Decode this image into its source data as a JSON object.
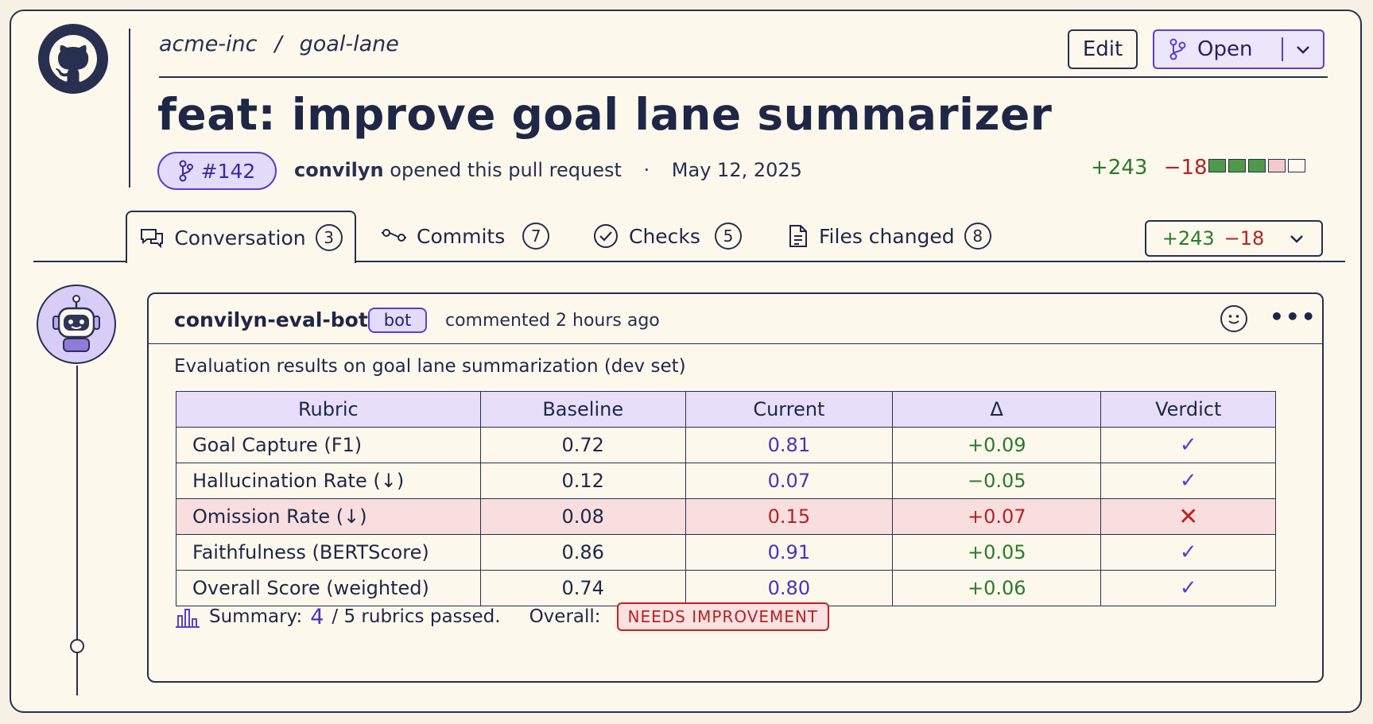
{
  "repo": {
    "owner": "acme-inc",
    "separator": "/",
    "name": "goal-lane"
  },
  "actions": {
    "edit_label": "Edit",
    "state_label": "Open"
  },
  "pr": {
    "title": "feat: improve goal lane summarizer",
    "number": "#142",
    "author": "convilyn",
    "opened_text": "opened this pull request",
    "dot": "·",
    "date": "May 12, 2025",
    "additions": "+243",
    "deletions": "−18"
  },
  "tabs": [
    {
      "label": "Conversation",
      "count": "3"
    },
    {
      "label": "Commits",
      "count": "7"
    },
    {
      "label": "Checks",
      "count": "5"
    },
    {
      "label": "Files changed",
      "count": "8"
    }
  ],
  "diff_button": {
    "additions": "+243",
    "deletions": "−18"
  },
  "comment": {
    "author": "convilyn-eval-bot",
    "badge": "bot",
    "meta": "commented 2 hours ago",
    "more": "•••",
    "intro": "Evaluation results on goal lane summarization (dev set)",
    "table": {
      "headers": [
        "Rubric",
        "Baseline",
        "Current",
        "Δ",
        "Verdict"
      ],
      "rows": [
        {
          "rubric": "Goal Capture (F1)",
          "baseline": "0.72",
          "current": "0.81",
          "delta": "+0.09",
          "verdict": "✓"
        },
        {
          "rubric": "Hallucination Rate (↓)",
          "baseline": "0.12",
          "current": "0.07",
          "delta": "−0.05",
          "verdict": "✓"
        },
        {
          "rubric": "Omission Rate (↓)",
          "baseline": "0.08",
          "current": "0.15",
          "delta": "+0.07",
          "verdict": "✕"
        },
        {
          "rubric": "Faithfulness (BERTScore)",
          "baseline": "0.86",
          "current": "0.91",
          "delta": "+0.05",
          "verdict": "✓"
        },
        {
          "rubric": "Overall Score (weighted)",
          "baseline": "0.74",
          "current": "0.80",
          "delta": "+0.06",
          "verdict": "✓"
        }
      ]
    },
    "summary": {
      "label": "Summary:",
      "passed": "4",
      "total_text": "/ 5 rubrics passed.",
      "overall_label": "Overall:",
      "status": "NEEDS IMPROVEMENT"
    }
  },
  "colors": {
    "accent": "#5b3fc7",
    "add": "#2b7a2b",
    "del": "#b52323",
    "ink": "#28304f",
    "paper": "#fdf8ec"
  }
}
